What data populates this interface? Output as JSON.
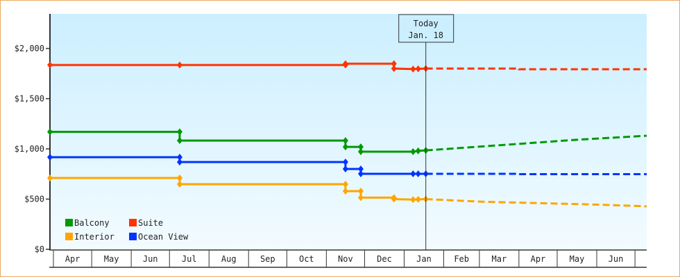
{
  "chart_data": {
    "type": "line",
    "title": "",
    "xlabel": "",
    "ylabel": "",
    "ylim": [
      0,
      2350
    ],
    "yticks": [
      0,
      500,
      1000,
      1500,
      2000
    ],
    "ytick_labels": [
      "$0",
      "$500",
      "$1,000",
      "$1,500",
      "$2,000"
    ],
    "xtick_labels": [
      "Apr",
      "May",
      "Jun",
      "Jul",
      "Aug",
      "Sep",
      "Oct",
      "Nov",
      "Dec",
      "Jan",
      "Feb",
      "Mar",
      "Apr",
      "May",
      "Jun"
    ],
    "grid": false,
    "legend_placement": "bottom-left",
    "today": {
      "label": "Today",
      "date_label": "Jan. 18",
      "date": "Jan 18"
    },
    "series": [
      {
        "name": "Balcony",
        "color": "#009900",
        "points": [
          [
            "Mar 29",
            1170
          ],
          [
            "Jul 9",
            1170
          ],
          [
            "Jul 9",
            1083
          ],
          [
            "Nov 16",
            1083
          ],
          [
            "Nov 16",
            1020
          ],
          [
            "Nov 28",
            1020
          ],
          [
            "Nov 28",
            972
          ],
          [
            "Jan 8",
            972
          ],
          [
            "Jan 12",
            980
          ],
          [
            "Jan 18",
            985
          ]
        ],
        "forecast": [
          [
            "Jan 18",
            985
          ],
          [
            "Feb 15",
            1010
          ],
          [
            "Apr 1",
            1050
          ],
          [
            "May 15",
            1090
          ],
          [
            "Jul 11",
            1131
          ]
        ]
      },
      {
        "name": "Suite",
        "color": "#ff3300",
        "points": [
          [
            "Mar 29",
            1835
          ],
          [
            "Jul 9",
            1835
          ],
          [
            "Nov 16",
            1835
          ],
          [
            "Nov 16",
            1848
          ],
          [
            "Dec 24",
            1848
          ],
          [
            "Dec 24",
            1800
          ],
          [
            "Jan 8",
            1795
          ],
          [
            "Jan 12",
            1797
          ],
          [
            "Jan 18",
            1800
          ]
        ],
        "forecast": [
          [
            "Jan 18",
            1800
          ],
          [
            "Apr 1",
            1800
          ],
          [
            "Apr 1",
            1793
          ],
          [
            "Jul 11",
            1793
          ]
        ]
      },
      {
        "name": "Interior",
        "color": "#ffa500",
        "points": [
          [
            "Mar 29",
            710
          ],
          [
            "Jul 9",
            710
          ],
          [
            "Jul 9",
            648
          ],
          [
            "Nov 16",
            648
          ],
          [
            "Nov 16",
            579
          ],
          [
            "Nov 28",
            579
          ],
          [
            "Nov 28",
            515
          ],
          [
            "Dec 24",
            515
          ],
          [
            "Dec 24",
            500
          ],
          [
            "Jan 8",
            495
          ],
          [
            "Jan 12",
            497
          ],
          [
            "Jan 18",
            500
          ]
        ],
        "forecast": [
          [
            "Jan 18",
            500
          ],
          [
            "Mar 1",
            475
          ],
          [
            "Apr 15",
            460
          ],
          [
            "Jun 1",
            445
          ],
          [
            "Jul 11",
            428
          ]
        ]
      },
      {
        "name": "Ocean View",
        "color": "#0033ff",
        "points": [
          [
            "Mar 29",
            917
          ],
          [
            "Jul 9",
            917
          ],
          [
            "Jul 9",
            869
          ],
          [
            "Nov 16",
            869
          ],
          [
            "Nov 16",
            800
          ],
          [
            "Nov 28",
            800
          ],
          [
            "Nov 28",
            752
          ],
          [
            "Jan 8",
            752
          ],
          [
            "Jan 12",
            752
          ],
          [
            "Jan 18",
            752
          ]
        ],
        "forecast": [
          [
            "Jan 18",
            752
          ],
          [
            "Apr 1",
            752
          ],
          [
            "Apr 1",
            748
          ],
          [
            "Jul 11",
            748
          ]
        ]
      }
    ]
  }
}
